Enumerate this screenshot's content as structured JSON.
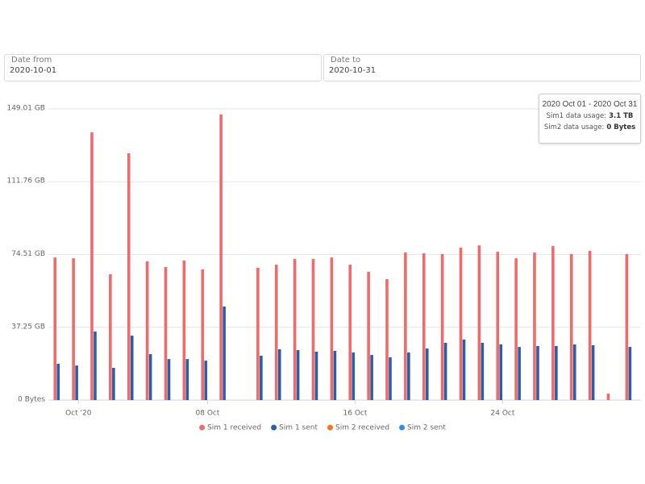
{
  "filters": {
    "date_from": {
      "label": "Date from",
      "value": "2020-10-01"
    },
    "date_to": {
      "label": "Date to",
      "value": "2020-10-31"
    }
  },
  "tooltip": {
    "title": "2020 Oct 01 - 2020 Oct 31",
    "lines": [
      {
        "label": "Sim1 data usage:",
        "value": "3.1 TB"
      },
      {
        "label": "Sim2 data usage:",
        "value": "0 Bytes"
      }
    ]
  },
  "chart_data": {
    "type": "bar",
    "categories": [
      null,
      "Oct '20",
      null,
      null,
      null,
      null,
      null,
      null,
      "08 Oct",
      null,
      null,
      null,
      null,
      null,
      null,
      null,
      "16 Oct",
      null,
      null,
      null,
      null,
      null,
      null,
      null,
      "24 Oct",
      null,
      null,
      null,
      null,
      null,
      null,
      null
    ],
    "series": [
      {
        "name": "Sim 1 received",
        "color": "#ef6a6a",
        "values": [
          73.0,
          72.6,
          137.0,
          64.4,
          126.3,
          71.0,
          68.1,
          71.4,
          66.9,
          146.1,
          null,
          67.7,
          69.3,
          72.2,
          72.2,
          73.0,
          69.3,
          65.6,
          61.9,
          75.5,
          75.1,
          74.7,
          78.0,
          79.2,
          75.9,
          72.6,
          75.5,
          78.8,
          74.7,
          76.4,
          3.3,
          74.7
        ]
      },
      {
        "name": "Sim 1 sent",
        "color": "#2b5ea8",
        "values": [
          18.6,
          17.7,
          35.1,
          16.5,
          33.0,
          23.5,
          21.0,
          21.0,
          20.2,
          47.9,
          null,
          22.7,
          26.0,
          25.6,
          24.8,
          25.2,
          24.4,
          23.1,
          21.9,
          24.4,
          26.4,
          29.3,
          31.0,
          29.3,
          28.5,
          27.2,
          27.7,
          27.7,
          28.5,
          28.1,
          0,
          27.2
        ]
      },
      {
        "name": "Sim 2 received",
        "color": "#f5761a",
        "values": [
          0,
          0,
          0,
          0,
          0,
          0,
          0,
          0,
          0,
          0,
          null,
          0,
          0,
          0,
          0,
          0,
          0,
          0,
          0,
          0,
          0,
          0,
          0,
          0,
          0,
          0,
          0,
          0,
          0,
          0,
          0,
          0
        ]
      },
      {
        "name": "Sim 2 sent",
        "color": "#2f8fe0",
        "values": [
          0,
          0,
          0,
          0,
          0,
          0,
          0,
          0,
          0,
          0,
          null,
          0,
          0,
          0,
          0,
          0,
          0,
          0,
          0,
          0,
          0,
          0,
          0,
          0,
          0,
          0,
          0,
          0,
          0,
          0,
          0,
          0
        ]
      }
    ],
    "ylim": [
      0,
      149.01
    ],
    "yticks": [
      {
        "value": 0,
        "label": "0 Bytes"
      },
      {
        "value": 37.25,
        "label": "37.25 GB"
      },
      {
        "value": 74.51,
        "label": "74.51 GB"
      },
      {
        "value": 111.76,
        "label": "111.76 GB"
      },
      {
        "value": 149.01,
        "label": "149.01 GB"
      }
    ],
    "grid": true
  }
}
